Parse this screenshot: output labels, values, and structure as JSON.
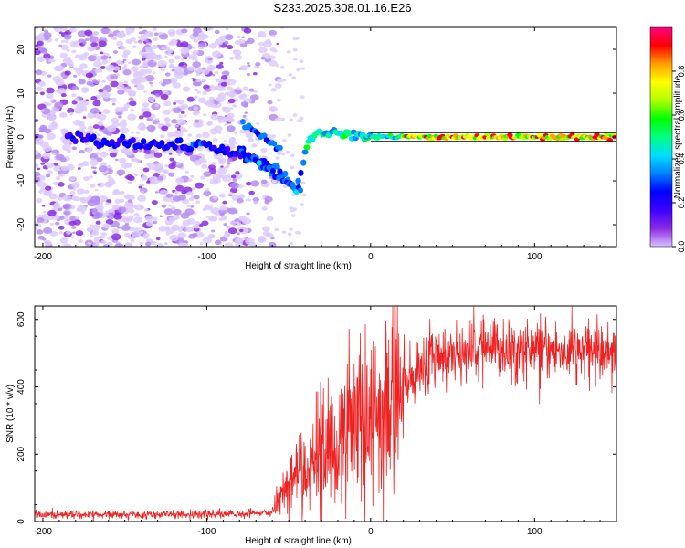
{
  "title": "S233.2025.308.01.16.E26",
  "chart_data": [
    {
      "type": "heatmap",
      "xlabel": "Height of straight line (km)",
      "ylabel": "Frequency (Hz)",
      "xlim": [
        -205,
        150
      ],
      "ylim": [
        -25,
        25
      ],
      "xticks": [
        -200,
        -100,
        0,
        100
      ],
      "xtick_labels": [
        "-200",
        "-100",
        "0",
        "100"
      ],
      "yticks": [
        -20,
        -10,
        0,
        10,
        20
      ],
      "ytick_labels": [
        "-20",
        "-10",
        "0",
        "10",
        "20"
      ],
      "colorbar": {
        "label": "Normalized spectral amplitude",
        "range": [
          0,
          1
        ],
        "ticks": [
          0.0,
          0.2,
          0.4,
          0.6,
          0.8
        ],
        "tick_labels": [
          "0.0",
          "0.2",
          "0.4",
          "0.6",
          "0.8"
        ],
        "colors": [
          "#d8c0ff",
          "#8a2be2",
          "#3d00ff",
          "#0000ff",
          "#0080ff",
          "#00e0ff",
          "#00ff80",
          "#00ff00",
          "#b0ff00",
          "#ffff00",
          "#ffa000",
          "#ff0000",
          "#ff0080"
        ]
      },
      "ridge": {
        "description_points": [
          [
            -180,
            0
          ],
          [
            -160,
            -1.5
          ],
          [
            -100,
            -2
          ],
          [
            -70,
            -5
          ],
          [
            -55,
            -8
          ],
          [
            -45,
            -12
          ],
          [
            -35,
            1
          ],
          [
            -20,
            2
          ],
          [
            0,
            0
          ],
          [
            40,
            0
          ],
          [
            80,
            0
          ],
          [
            120,
            0
          ],
          [
            150,
            0
          ]
        ],
        "line_hz": [
          1,
          -1
        ]
      }
    },
    {
      "type": "line",
      "xlabel": "Height of straight line (km)",
      "ylabel": "SNR (10 * v/v)",
      "xlim": [
        -205,
        150
      ],
      "ylim": [
        0,
        640
      ],
      "xticks": [
        -200,
        -100,
        0,
        100
      ],
      "xtick_labels": [
        "-200",
        "-100",
        "0",
        "100"
      ],
      "yticks": [
        0,
        200,
        400,
        600
      ],
      "ytick_labels": [
        "0",
        "200",
        "400",
        "600"
      ],
      "series": [
        {
          "name": "SNR",
          "color": "#ee2222",
          "trend": [
            [
              -205,
              20
            ],
            [
              -150,
              20
            ],
            [
              -100,
              22
            ],
            [
              -60,
              25
            ],
            [
              -50,
              120
            ],
            [
              -40,
              160
            ],
            [
              -30,
              200
            ],
            [
              -20,
              230
            ],
            [
              -10,
              270
            ],
            [
              0,
              300
            ],
            [
              10,
              350
            ],
            [
              20,
              400
            ],
            [
              30,
              460
            ],
            [
              40,
              490
            ],
            [
              60,
              510
            ],
            [
              80,
              510
            ],
            [
              100,
              510
            ],
            [
              120,
              505
            ],
            [
              150,
              510
            ]
          ]
        }
      ]
    }
  ]
}
